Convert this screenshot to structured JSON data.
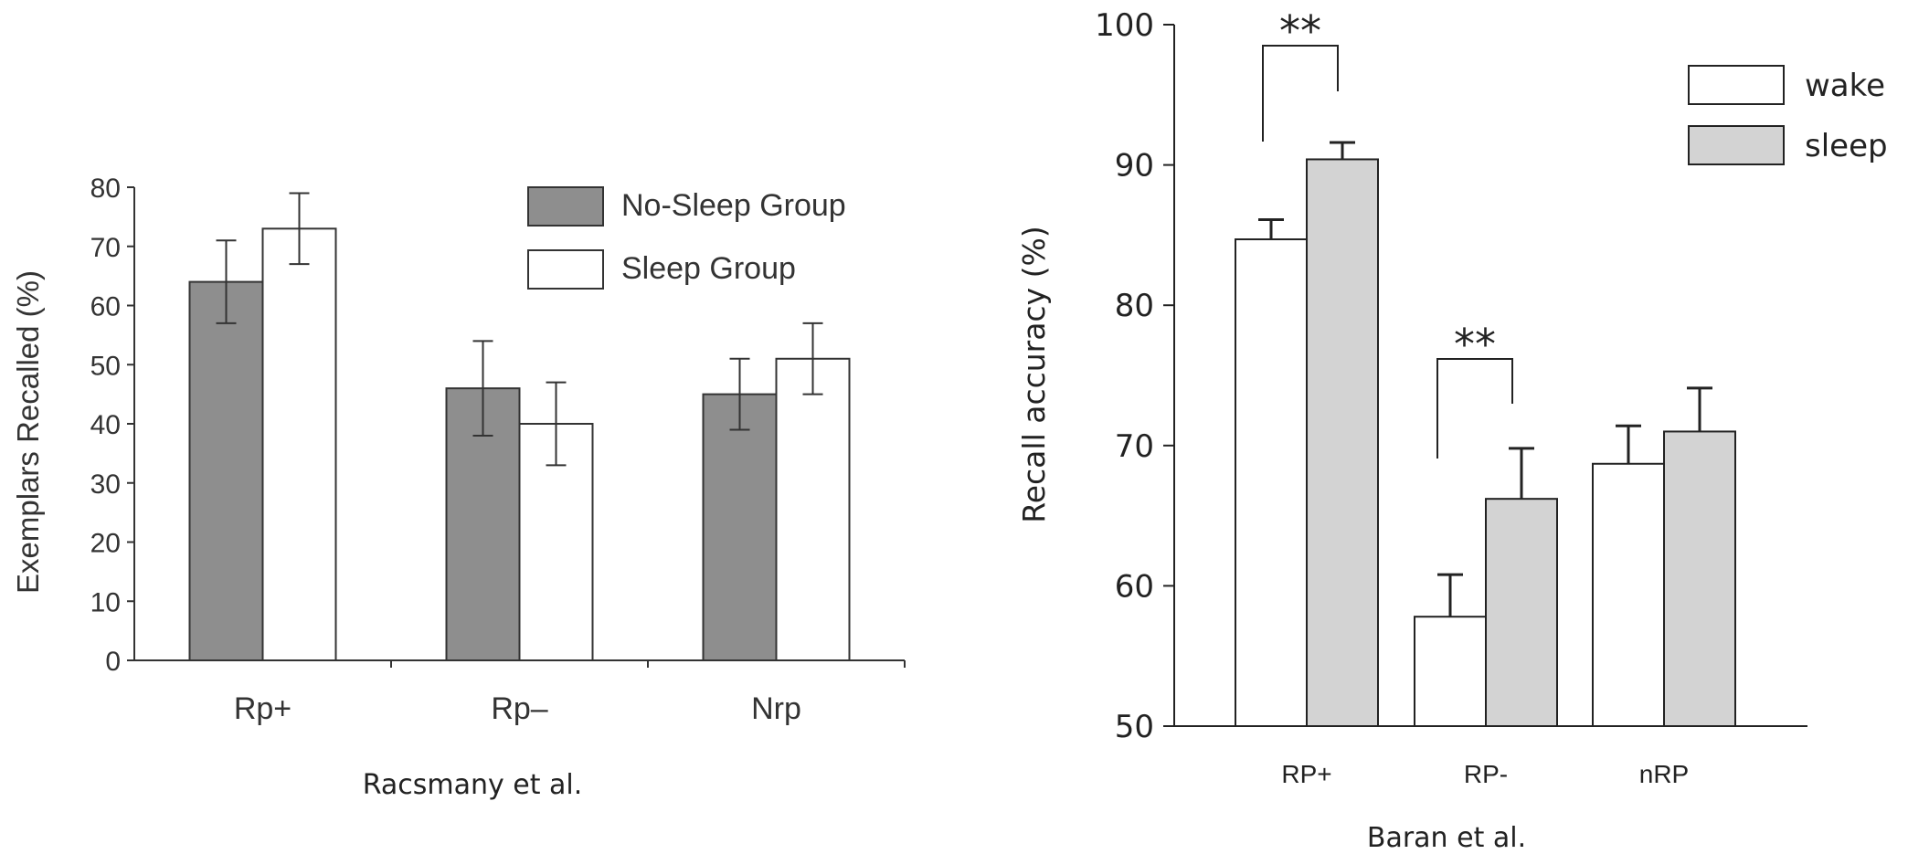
{
  "chart_data": [
    {
      "type": "bar",
      "caption": "Racsmany et al.",
      "ylabel": "Exemplars Recalled (%)",
      "xlabel": "",
      "ylim": [
        0,
        80
      ],
      "yticks": [
        "0",
        "10",
        "20",
        "30",
        "40",
        "50",
        "60",
        "70",
        "80"
      ],
      "categories": [
        "Rp+",
        "Rp–",
        "Nrp"
      ],
      "legend_position": "top-right",
      "series": [
        {
          "name": "No-Sleep Group",
          "color": "#8e8e8e",
          "values": [
            64,
            46,
            45
          ],
          "err_low": [
            57,
            38,
            39
          ],
          "err_high": [
            71,
            54,
            51
          ]
        },
        {
          "name": "Sleep Group",
          "color": "#ffffff",
          "values": [
            73,
            40,
            51
          ],
          "err_low": [
            67,
            33,
            45
          ],
          "err_high": [
            79,
            47,
            57
          ]
        }
      ]
    },
    {
      "type": "bar",
      "caption": "Baran et al.",
      "ylabel": "Recall accuracy (%)",
      "xlabel": "",
      "ylim": [
        50,
        100
      ],
      "yticks": [
        "50",
        "60",
        "70",
        "80",
        "90",
        "100"
      ],
      "categories": [
        "RP+",
        "RP-",
        "nRP"
      ],
      "legend_position": "top-right",
      "series": [
        {
          "name": "wake",
          "color": "#ffffff",
          "values": [
            84.7,
            57.8,
            68.7
          ],
          "err_high": [
            86.1,
            60.8,
            71.4
          ]
        },
        {
          "name": "sleep",
          "color": "#d3d3d3",
          "values": [
            90.4,
            66.2,
            71.0
          ],
          "err_high": [
            91.6,
            69.8,
            74.1
          ]
        }
      ],
      "significance": [
        {
          "category": "RP+",
          "label": "**"
        },
        {
          "category": "RP-",
          "label": "**"
        }
      ]
    }
  ]
}
